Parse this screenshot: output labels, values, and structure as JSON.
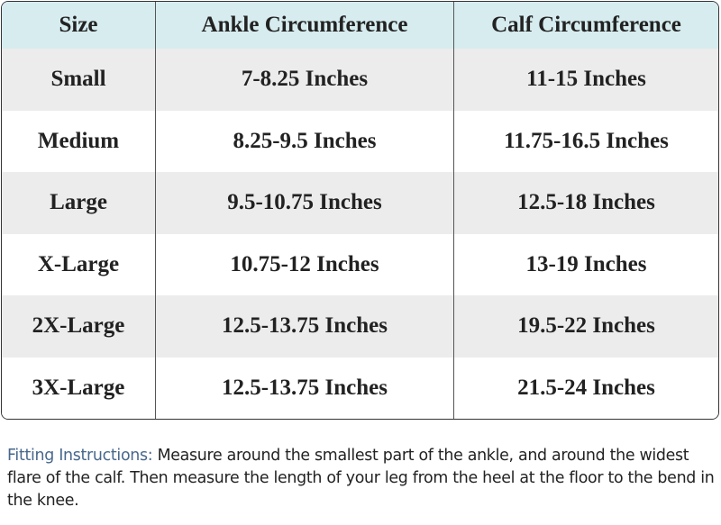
{
  "table": {
    "header": [
      "Size",
      "Ankle Circumference",
      "Calf Circumference"
    ],
    "rows": [
      [
        "Small",
        "7-8.25 Inches",
        "11-15 Inches"
      ],
      [
        "Medium",
        "8.25-9.5 Inches",
        "11.75-16.5 Inches"
      ],
      [
        "Large",
        "9.5-10.75 Inches",
        "12.5-18 Inches"
      ],
      [
        "X-Large",
        "10.75-12 Inches",
        "13-19 Inches"
      ],
      [
        "2X-Large",
        "12.5-13.75 Inches",
        "19.5-22 Inches"
      ],
      [
        "3X-Large",
        "12.5-13.75 Inches",
        "21.5-24 Inches"
      ]
    ]
  },
  "instructions": {
    "label": "Fitting Instructions:",
    "text": "Measure around the smallest part of the ankle, and around the widest flare of the calf. Then measure the length of your leg from the heel at the floor to the bend in the knee."
  }
}
